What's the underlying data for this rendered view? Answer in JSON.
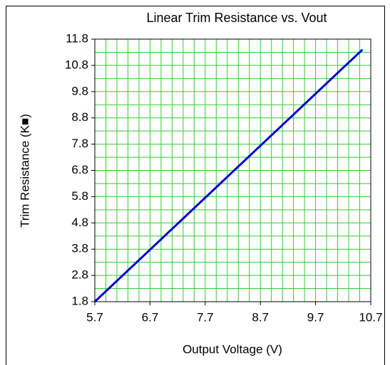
{
  "chart_data": {
    "type": "line",
    "title": "Linear Trim Resistance vs. Vout",
    "x_label": "Output Voltage (V)",
    "y_label": "Trim Resistance (K■)",
    "x": [
      5.7,
      6.2,
      6.7,
      7.2,
      7.7,
      8.2,
      8.7,
      9.2,
      9.7,
      10.2,
      10.55
    ],
    "series": [
      {
        "name": "Trim Resistance",
        "color": "#0000cc",
        "values": [
          1.8,
          2.79,
          3.78,
          4.77,
          5.76,
          6.75,
          7.74,
          8.73,
          9.72,
          10.71,
          11.4
        ]
      }
    ],
    "xlim": [
      5.7,
      10.7
    ],
    "xticks": [
      5.7,
      6.7,
      7.7,
      8.7,
      9.7,
      10.7
    ],
    "ylim": [
      1.8,
      11.8
    ],
    "yticks": [
      1.8,
      2.8,
      3.8,
      4.8,
      5.8,
      6.8,
      7.8,
      8.8,
      9.8,
      10.8,
      11.8
    ],
    "x_minor_ticks": [
      5.9,
      6.1,
      6.3,
      6.5,
      6.9,
      7.1,
      7.3,
      7.5,
      7.9,
      8.1,
      8.3,
      8.5,
      8.9,
      9.1,
      9.3,
      9.5,
      9.9,
      10.1,
      10.3,
      10.5
    ],
    "y_minor_ticks": [
      2.3,
      3.3,
      4.3,
      5.3,
      6.3,
      7.3,
      8.3,
      9.3,
      10.3,
      11.3
    ],
    "grid": true,
    "grid_color": "#33cc33"
  }
}
